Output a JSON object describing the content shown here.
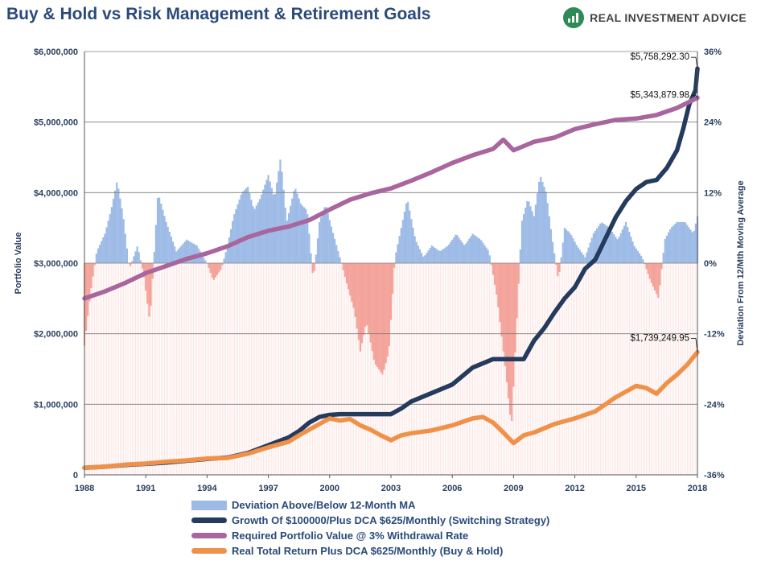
{
  "header": {
    "title": "Buy & Hold vs Risk Management & Retirement Goals",
    "brand": "REAL INVESTMENT ADVICE"
  },
  "colors": {
    "deviation_pos": "#9dbbe6",
    "deviation_neg": "#f4a39a",
    "switching": "#243b5e",
    "required": "#a8659e",
    "buyhold": "#f0914a",
    "grid": "#7d7d7d"
  },
  "chart_data": {
    "type": "line+bar",
    "title": "Buy & Hold vs Risk Management & Retirement Goals",
    "xlabel": "",
    "ylabel": "Portfolio Value",
    "y2label": "Deviation From 12/Mth Moving Average",
    "xlim": [
      1988,
      2018
    ],
    "ylim": [
      0,
      6000000
    ],
    "y2lim": [
      -36,
      36
    ],
    "x_ticks": [
      "1988",
      "1991",
      "1994",
      "1997",
      "2000",
      "2003",
      "2006",
      "2009",
      "2012",
      "2015",
      "2018"
    ],
    "y_ticks": [
      "0",
      "$1,000,000",
      "$2,000,000",
      "$3,000,000",
      "$4,000,000",
      "$5,000,000",
      "$6,000,000"
    ],
    "y2_ticks": [
      "-36%",
      "-24%",
      "-12%",
      "0%",
      "12%",
      "24%",
      "36%"
    ],
    "legend": [
      "Deviation Above/Below 12-Month MA",
      "Growth Of $100000/Plus DCA $625/Monthly (Switching Strategy)",
      "Required Portfolio Value @ 3% Withdrawal Rate",
      "Real Total Return Plus DCA $625/Monthly (Buy & Hold)"
    ],
    "annotations": [
      {
        "text": "$5,758,292.30",
        "x": 2018,
        "y": 5758292.3
      },
      {
        "text": "$5,343,879.98",
        "x": 2018,
        "y": 5343879.98
      },
      {
        "text": "$1,739,249.95",
        "x": 2018,
        "y": 1739249.95
      }
    ],
    "series": [
      {
        "name": "Deviation Above/Below 12-Month MA",
        "kind": "bar",
        "axis": "right",
        "x": [
          1988.0,
          1988.3,
          1988.6,
          1989.0,
          1989.3,
          1989.6,
          1989.9,
          1990.2,
          1990.6,
          1990.9,
          1991.2,
          1991.6,
          1992.0,
          1992.5,
          1993.0,
          1993.5,
          1994.0,
          1994.3,
          1994.7,
          1995.0,
          1995.3,
          1995.7,
          1996.0,
          1996.3,
          1996.6,
          1997.0,
          1997.3,
          1997.6,
          1997.9,
          1998.3,
          1998.6,
          1998.9,
          1999.2,
          1999.5,
          1999.8,
          2000.1,
          2000.5,
          2000.8,
          2001.2,
          2001.5,
          2001.8,
          2002.2,
          2002.6,
          2002.9,
          2003.2,
          2003.5,
          2003.8,
          2004.2,
          2004.6,
          2005.0,
          2005.4,
          2005.8,
          2006.2,
          2006.6,
          2007.0,
          2007.4,
          2007.8,
          2008.2,
          2008.6,
          2008.9,
          2009.1,
          2009.4,
          2009.7,
          2010.0,
          2010.3,
          2010.6,
          2010.9,
          2011.2,
          2011.5,
          2011.8,
          2012.1,
          2012.5,
          2012.9,
          2013.3,
          2013.7,
          2014.1,
          2014.5,
          2014.9,
          2015.3,
          2015.7,
          2016.1,
          2016.4,
          2016.7,
          2017.0,
          2017.4,
          2017.8,
          2018.0
        ],
        "values": [
          -14,
          -5,
          2,
          5,
          9,
          14,
          8,
          -1,
          3,
          -2,
          -10,
          12,
          7,
          2,
          4,
          3,
          0,
          -3,
          -1,
          3,
          8,
          12,
          13,
          9,
          11,
          15,
          11,
          18,
          7,
          13,
          10,
          9,
          -3,
          7,
          10,
          6,
          1,
          -3,
          -8,
          -15,
          -10,
          -17,
          -19,
          -15,
          1,
          6,
          11,
          4,
          1,
          3,
          2,
          3,
          5,
          3,
          5,
          4,
          2,
          -6,
          -18,
          -28,
          -14,
          7,
          11,
          8,
          15,
          12,
          4,
          -3,
          6,
          5,
          3,
          1,
          5,
          7,
          6,
          4,
          7,
          3,
          1,
          -3,
          -6,
          4,
          6,
          7,
          7,
          5,
          8
        ]
      },
      {
        "name": "Growth Of $100000/Plus DCA $625/Monthly (Switching Strategy)",
        "kind": "line",
        "axis": "left",
        "x": [
          1988,
          1989,
          1990,
          1991,
          1992,
          1993,
          1994,
          1995,
          1996,
          1997,
          1998,
          1998.5,
          1999,
          1999.5,
          2000,
          2000.5,
          2001,
          2002,
          2003,
          2003.5,
          2004,
          2005,
          2006,
          2006.5,
          2007,
          2008,
          2009,
          2009.5,
          2010,
          2010.5,
          2011,
          2011.5,
          2012,
          2012.5,
          2013,
          2013.5,
          2014,
          2014.5,
          2015,
          2015.5,
          2016,
          2016.5,
          2017,
          2017.3,
          2017.6,
          2017.9,
          2018
        ],
        "values": [
          100000,
          115000,
          140000,
          155000,
          175000,
          200000,
          225000,
          245000,
          310000,
          420000,
          530000,
          620000,
          740000,
          820000,
          850000,
          860000,
          860000,
          860000,
          860000,
          940000,
          1040000,
          1160000,
          1280000,
          1400000,
          1520000,
          1640000,
          1640000,
          1640000,
          1900000,
          2080000,
          2300000,
          2500000,
          2660000,
          2920000,
          3050000,
          3350000,
          3650000,
          3880000,
          4050000,
          4150000,
          4180000,
          4350000,
          4600000,
          4900000,
          5250000,
          5450000,
          5758292.3
        ]
      },
      {
        "name": "Required Portfolio Value @ 3% Withdrawal Rate",
        "kind": "line",
        "axis": "left",
        "x": [
          1988,
          1989,
          1990,
          1991,
          1992,
          1993,
          1994,
          1995,
          1996,
          1997,
          1998,
          1999,
          2000,
          2001,
          2002,
          2003,
          2004,
          2005,
          2006,
          2007,
          2008,
          2008.5,
          2009,
          2009.5,
          2010,
          2011,
          2012,
          2013,
          2014,
          2015,
          2016,
          2017,
          2018
        ],
        "values": [
          2500000,
          2600000,
          2720000,
          2860000,
          2960000,
          3060000,
          3140000,
          3240000,
          3370000,
          3460000,
          3520000,
          3610000,
          3760000,
          3900000,
          3990000,
          4060000,
          4170000,
          4290000,
          4420000,
          4530000,
          4620000,
          4750000,
          4600000,
          4660000,
          4720000,
          4780000,
          4900000,
          4970000,
          5030000,
          5050000,
          5100000,
          5200000,
          5343879.98
        ]
      },
      {
        "name": "Real Total Return Plus DCA $625/Monthly (Buy & Hold)",
        "kind": "line",
        "axis": "left",
        "x": [
          1988,
          1989,
          1990,
          1991,
          1992,
          1993,
          1994,
          1995,
          1996,
          1997,
          1998,
          1998.5,
          1999,
          1999.5,
          2000,
          2000.5,
          2001,
          2001.5,
          2002,
          2002.5,
          2003,
          2003.5,
          2004,
          2005,
          2006,
          2007,
          2007.5,
          2008,
          2008.5,
          2009,
          2009.5,
          2010,
          2011,
          2012,
          2013,
          2014,
          2014.5,
          2015,
          2015.5,
          2016,
          2016.5,
          2017,
          2017.5,
          2018
        ],
        "values": [
          100000,
          115000,
          145000,
          160000,
          185000,
          205000,
          230000,
          240000,
          300000,
          390000,
          470000,
          560000,
          640000,
          720000,
          800000,
          770000,
          790000,
          700000,
          640000,
          560000,
          490000,
          560000,
          590000,
          630000,
          700000,
          800000,
          820000,
          740000,
          600000,
          450000,
          560000,
          600000,
          720000,
          800000,
          900000,
          1100000,
          1180000,
          1260000,
          1230000,
          1150000,
          1300000,
          1420000,
          1560000,
          1739249.95
        ]
      }
    ]
  }
}
